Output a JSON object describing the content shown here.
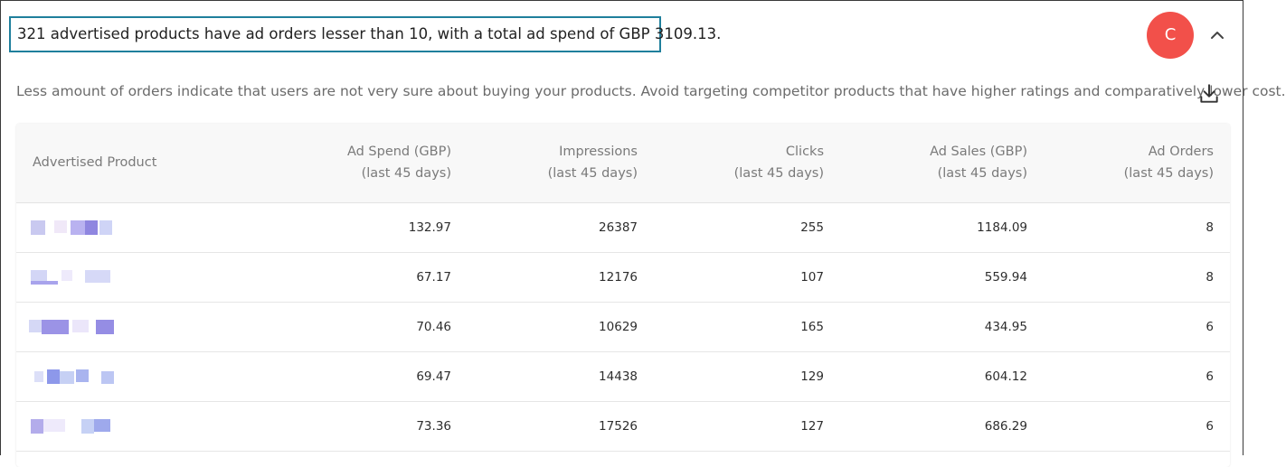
{
  "insight": {
    "headline": "321 advertised products have ad orders lesser than 10, with a total ad spend of GBP 3109.13.",
    "description": "Less amount of orders indicate that users are not very sure about buying your products. Avoid targeting competitor products that have higher ratings and comparatively lower cost."
  },
  "user": {
    "avatar_initial": "C"
  },
  "icons": {
    "collapse": "chevron-up-icon",
    "download": "download-icon"
  },
  "colors": {
    "avatar_bg": "#f2504a",
    "headline_border": "#1f7f9c"
  },
  "table": {
    "columns": [
      {
        "title": "Advertised Product",
        "subtitle": ""
      },
      {
        "title": "Ad Spend (GBP)",
        "subtitle": "(last 45 days)"
      },
      {
        "title": "Impressions",
        "subtitle": "(last 45 days)"
      },
      {
        "title": "Clicks",
        "subtitle": "(last 45 days)"
      },
      {
        "title": "Ad Sales (GBP)",
        "subtitle": "(last 45 days)"
      },
      {
        "title": "Ad Orders",
        "subtitle": "(last 45 days)"
      }
    ],
    "rows": [
      {
        "ad_spend": "132.97",
        "impressions": "26387",
        "clicks": "255",
        "ad_sales": "1184.09",
        "ad_orders": "8"
      },
      {
        "ad_spend": "67.17",
        "impressions": "12176",
        "clicks": "107",
        "ad_sales": "559.94",
        "ad_orders": "8"
      },
      {
        "ad_spend": "70.46",
        "impressions": "10629",
        "clicks": "165",
        "ad_sales": "434.95",
        "ad_orders": "6"
      },
      {
        "ad_spend": "69.47",
        "impressions": "14438",
        "clicks": "129",
        "ad_sales": "604.12",
        "ad_orders": "6"
      },
      {
        "ad_spend": "73.36",
        "impressions": "17526",
        "clicks": "127",
        "ad_sales": "686.29",
        "ad_orders": "6"
      }
    ]
  }
}
